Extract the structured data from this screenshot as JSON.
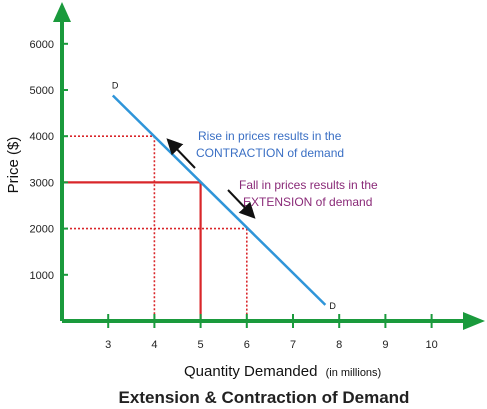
{
  "chart_data": {
    "type": "line",
    "title": "Extension & Contraction of Demand",
    "xlabel": "Quantity Demanded",
    "xlabel_suffix": "(in millions)",
    "ylabel": "Price ($)",
    "xlim": [
      2,
      11
    ],
    "ylim": [
      0,
      7000
    ],
    "x_ticks": [
      "3",
      "4",
      "5",
      "6",
      "7",
      "8",
      "9",
      "10"
    ],
    "y_ticks": [
      "1000",
      "2000",
      "3000",
      "4000",
      "5000",
      "6000"
    ],
    "demand_curve": {
      "label_start": "D",
      "label_end": "D",
      "points": [
        {
          "x": 3.1,
          "y": 4880
        },
        {
          "x": 7.7,
          "y": 350
        }
      ]
    },
    "reference_points": [
      {
        "x": 4,
        "y": 4000,
        "style": "dotted"
      },
      {
        "x": 5,
        "y": 3000,
        "style": "solid"
      },
      {
        "x": 6,
        "y": 2000,
        "style": "dotted"
      }
    ],
    "annotations": {
      "contraction": [
        "Rise in prices results in the",
        "CONTRACTION of demand"
      ],
      "extension": [
        "Fall in prices results in the",
        "EXTENSION of demand"
      ]
    },
    "colors": {
      "axis": "#1a9a3c",
      "curve": "#2f95d9",
      "guides": "#d9262a",
      "contraction_text": "#3a6fc4",
      "extension_text": "#8a2a78"
    }
  }
}
